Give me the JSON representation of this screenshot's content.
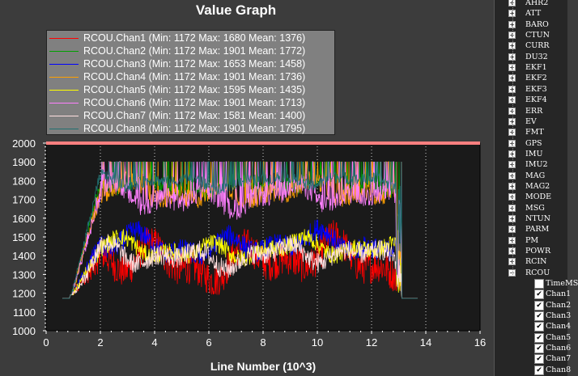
{
  "title": "Value Graph",
  "chart_data": {
    "type": "line",
    "xlabel": "Line Number (10^3)",
    "xlim": [
      0,
      16
    ],
    "ylim": [
      1000,
      2000
    ],
    "x_ticks": [
      "0",
      "2",
      "4",
      "6",
      "8",
      "10",
      "12",
      "14",
      "16"
    ],
    "y_ticks": [
      "1000",
      "1100",
      "1200",
      "1300",
      "1400",
      "1500",
      "1600",
      "1700",
      "1800",
      "1900",
      "2000"
    ],
    "grid": "vertical dotted",
    "legend_position": "top-left",
    "series": [
      {
        "name": "RCOU.Chan1",
        "min": 1172,
        "max": 1680,
        "mean": 1376,
        "color": "#ff0000"
      },
      {
        "name": "RCOU.Chan2",
        "min": 1172,
        "max": 1901,
        "mean": 1772,
        "color": "#00a000"
      },
      {
        "name": "RCOU.Chan3",
        "min": 1172,
        "max": 1653,
        "mean": 1458,
        "color": "#0000ff"
      },
      {
        "name": "RCOU.Chan4",
        "min": 1172,
        "max": 1901,
        "mean": 1736,
        "color": "#ffa000"
      },
      {
        "name": "RCOU.Chan5",
        "min": 1172,
        "max": 1595,
        "mean": 1435,
        "color": "#ffff00"
      },
      {
        "name": "RCOU.Chan6",
        "min": 1172,
        "max": 1901,
        "mean": 1713,
        "color": "#ff80ff"
      },
      {
        "name": "RCOU.Chan7",
        "min": 1172,
        "max": 1581,
        "mean": 1400,
        "color": "#ffe0e0"
      },
      {
        "name": "RCOU.Chan8",
        "min": 1172,
        "max": 1901,
        "mean": 1795,
        "color": "#207070"
      }
    ],
    "reference_line": {
      "y": 2000,
      "color": "#ff8080"
    },
    "active_range_x": [
      0.9,
      13.1
    ],
    "idle_value": 1172
  },
  "legend_labels": [
    "RCOU.Chan1 (Min: 1172 Max: 1680 Mean: 1376)",
    "RCOU.Chan2 (Min: 1172 Max: 1901 Mean: 1772)",
    "RCOU.Chan3 (Min: 1172 Max: 1653 Mean: 1458)",
    "RCOU.Chan4 (Min: 1172 Max: 1901 Mean: 1736)",
    "RCOU.Chan5 (Min: 1172 Max: 1595 Mean: 1435)",
    "RCOU.Chan6 (Min: 1172 Max: 1901 Mean: 1713)",
    "RCOU.Chan7 (Min: 1172 Max: 1581 Mean: 1400)",
    "RCOU.Chan8 (Min: 1172 Max: 1901 Mean: 1795)"
  ],
  "tree": {
    "groups": [
      "AHR2",
      "ATT",
      "BARO",
      "CTUN",
      "CURR",
      "DU32",
      "EKF1",
      "EKF2",
      "EKF3",
      "EKF4",
      "ERR",
      "EV",
      "FMT",
      "GPS",
      "IMU",
      "IMU2",
      "MAG",
      "MAG2",
      "MODE",
      "MSG",
      "NTUN",
      "PARM",
      "PM",
      "POWR",
      "RCIN",
      "RCOU"
    ],
    "expanded_group": "RCOU",
    "children": [
      {
        "label": "TimeMS",
        "checked": false
      },
      {
        "label": "Chan1",
        "checked": true
      },
      {
        "label": "Chan2",
        "checked": true
      },
      {
        "label": "Chan3",
        "checked": true
      },
      {
        "label": "Chan4",
        "checked": true
      },
      {
        "label": "Chan5",
        "checked": true
      },
      {
        "label": "Chan6",
        "checked": true
      },
      {
        "label": "Chan7",
        "checked": true
      },
      {
        "label": "Chan8",
        "checked": true
      }
    ]
  }
}
